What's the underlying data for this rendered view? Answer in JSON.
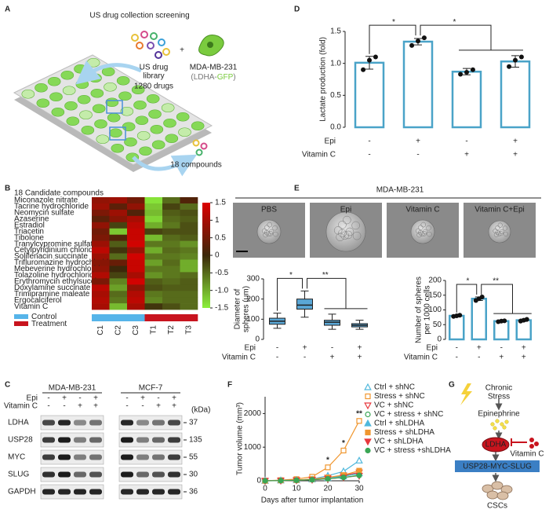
{
  "figure": {
    "panel_a": {
      "letter": "A",
      "title": "US drug collection screening",
      "library_lines": [
        "US drug",
        "library"
      ],
      "drug_count": "1280 drugs",
      "plus": "+",
      "cell_line": "MDA-MB-231",
      "reporter_parts": [
        "(LDHA-",
        "GFP",
        ")"
      ],
      "result": "18 compounds"
    },
    "panel_b": {
      "letter": "B",
      "type": "heatmap",
      "header": "18 Candidate compounds",
      "rows": [
        "Miconazole nitrate",
        "Tacrine hydrochloride",
        "Neomycin sulfate",
        "Azaserine",
        "Estradiol",
        "Triacetin",
        "Tibolone",
        "Tranylcypromine sulfate",
        "Cetylpyridinium chloride",
        "Solifenacin succinate",
        "Trifluromazine hydrochloride",
        "Mebeverine hydrochloride",
        "Tolazoline hydrochloride",
        "Erythromycin ethylsuccinate",
        "Doxylamine succinate",
        "Trimipramine maleate",
        "Ergocalciferol",
        "Vitamin C"
      ],
      "groups": [
        {
          "name": "Control",
          "color": "#56b4e9",
          "columns": [
            "C1",
            "C2",
            "C3"
          ]
        },
        {
          "name": "Treatment",
          "color": "#c8141e",
          "columns": [
            "T1",
            "T2",
            "T3"
          ]
        }
      ],
      "values": [
        [
          0.8,
          0.9,
          0.5,
          -1.4,
          -0.5,
          0.2
        ],
        [
          0.9,
          0.3,
          0.8,
          -1.2,
          -0.2,
          -0.5
        ],
        [
          0.6,
          0.9,
          0.2,
          -1.1,
          -0.4,
          -0.3
        ],
        [
          0.3,
          0.7,
          1.0,
          -1.3,
          -0.5,
          -0.4
        ],
        [
          0.8,
          -0.2,
          1.2,
          -1.0,
          -0.6,
          -0.3
        ],
        [
          0.5,
          -1.2,
          1.3,
          -0.2,
          -0.3,
          -0.3
        ],
        [
          0.6,
          0.2,
          1.3,
          -1.1,
          -0.5,
          -0.4
        ],
        [
          0.9,
          -0.4,
          1.4,
          -0.6,
          -0.6,
          -0.8
        ],
        [
          1.2,
          -0.1,
          0.9,
          -1.0,
          -0.5,
          -0.6
        ],
        [
          0.9,
          -0.5,
          1.4,
          -0.6,
          -0.6,
          -0.7
        ],
        [
          0.7,
          0.4,
          1.3,
          -0.9,
          -0.5,
          -1.0
        ],
        [
          0.8,
          0.0,
          1.3,
          -0.6,
          -0.6,
          -1.0
        ],
        [
          1.1,
          -0.2,
          1.0,
          -0.8,
          -0.6,
          -0.5
        ],
        [
          0.6,
          -0.7,
          1.4,
          -0.4,
          -0.5,
          -0.4
        ],
        [
          1.2,
          -0.9,
          0.8,
          -0.3,
          -0.4,
          -0.4
        ],
        [
          1.0,
          -0.5,
          1.1,
          -0.6,
          -0.5,
          -0.5
        ],
        [
          1.1,
          -0.6,
          1.2,
          -0.7,
          -0.5,
          -0.5
        ],
        [
          1.0,
          -1.1,
          1.0,
          -0.1,
          -0.3,
          -0.5
        ]
      ],
      "colorbar": {
        "range": [
          -1.5,
          1.5
        ],
        "ticks": [
          1.5,
          1,
          0.5,
          0,
          -0.5,
          {
            "value": -1,
            "label": "-1.0"
          },
          -1.5
        ]
      }
    },
    "panel_c": {
      "letter": "C",
      "cell_lines": [
        "MDA-MB-231",
        "MCF-7"
      ],
      "conditions": [
        {
          "name": "Epi",
          "signs": [
            "-",
            "+",
            "-",
            "+"
          ]
        },
        {
          "name": "Vitamin C",
          "signs": [
            "-",
            "-",
            "+",
            "+"
          ]
        }
      ],
      "unit": "(kDa)",
      "proteins": [
        {
          "name": "LDHA",
          "kda": 37
        },
        {
          "name": "USP28",
          "kda": 135
        },
        {
          "name": "MYC",
          "kda": 55
        },
        {
          "name": "SLUG",
          "kda": 30
        },
        {
          "name": "GAPDH",
          "kda": 36
        }
      ]
    },
    "panel_d": {
      "letter": "D",
      "chart": {
        "type": "bar",
        "y_label_lines": [
          "Lactate production (fold)"
        ],
        "ylim": [
          0,
          1.5
        ],
        "yticks": [
          {
            "value": 0,
            "label": "0.0"
          },
          0.5,
          {
            "value": 1,
            "label": "1.0"
          },
          1.5
        ],
        "values": [
          1.01,
          1.34,
          0.87,
          1.03
        ],
        "errors": [
          0.1,
          0.05,
          0.05,
          0.09
        ],
        "points": [
          [
            0.9,
            1.05,
            1.1
          ],
          [
            1.28,
            1.35,
            1.4
          ],
          [
            0.83,
            0.86,
            0.9
          ],
          [
            0.95,
            1.05,
            1.1
          ]
        ],
        "color": "#4aa3c8",
        "conditions": [
          {
            "name": "Epi",
            "signs": [
              "-",
              "+",
              "-",
              "+"
            ]
          },
          {
            "name": "Vitamin C",
            "signs": [
              "-",
              "-",
              "+",
              "+"
            ]
          }
        ],
        "significance": [
          "*",
          "*"
        ]
      }
    },
    "panel_e": {
      "letter": "E",
      "cell_line": "MDA-MB-231",
      "images": [
        "PBS",
        "Epi",
        "Vitamin C",
        "Vitamin C+Epi"
      ],
      "charts": [
        {
          "type": "box",
          "y_label_lines": [
            "Diameter of",
            "spheres (μm)"
          ],
          "ylim": [
            0,
            300
          ],
          "yticks": [
            0,
            100,
            200,
            300
          ],
          "color": "#5aa7d6",
          "boxes": [
            {
              "min": 55,
              "q1": 75,
              "median": 90,
              "q3": 105,
              "max": 130
            },
            {
              "min": 110,
              "q1": 150,
              "median": 170,
              "q3": 200,
              "max": 240
            },
            {
              "min": 50,
              "q1": 70,
              "median": 85,
              "q3": 95,
              "max": 125
            },
            {
              "min": 50,
              "q1": 62,
              "median": 70,
              "q3": 78,
              "max": 95
            }
          ],
          "conditions": [
            {
              "name": "Epi",
              "signs": [
                "-",
                "+",
                "-",
                "+"
              ]
            },
            {
              "name": "Vitamin C",
              "signs": [
                "-",
                "-",
                "+",
                "+"
              ]
            }
          ],
          "significance": [
            "*",
            "**"
          ]
        },
        {
          "type": "bar",
          "y_label_lines": [
            "Number of spheres",
            "per 1000 cells"
          ],
          "ylim": [
            0,
            200
          ],
          "yticks": [
            0,
            50,
            100,
            150,
            200
          ],
          "color": "#4aa3c8",
          "values": [
            80,
            138,
            62,
            65
          ],
          "errors": [
            3,
            6,
            2,
            4
          ],
          "points": [
            [
              78,
              80,
              82
            ],
            [
              132,
              138,
              144
            ],
            [
              60,
              62,
              63
            ],
            [
              62,
              65,
              68
            ]
          ],
          "conditions": [
            {
              "name": "Epi",
              "signs": [
                "-",
                "+",
                "-",
                "+"
              ]
            },
            {
              "name": "Vitamin C",
              "signs": [
                "-",
                "-",
                "+",
                "+"
              ]
            }
          ],
          "significance": [
            "*",
            "**"
          ]
        }
      ]
    },
    "panel_f": {
      "letter": "F",
      "chart": {
        "type": "line",
        "y_label": "Tumor volume (mm³)",
        "x_label": "Days after tumor implantation",
        "x": [
          0,
          5,
          10,
          15,
          20,
          25,
          30
        ],
        "xlim": [
          0,
          30
        ],
        "xticks": [
          0,
          10,
          20,
          30
        ],
        "ylim": [
          0,
          2500
        ],
        "yticks": [
          0,
          1000,
          2000
        ],
        "series": [
          {
            "name": "Ctrl + shNC",
            "color": "#4fb8dc",
            "marker": "triangle",
            "filled": false,
            "values": [
              0,
              10,
              20,
              50,
              150,
              280,
              600
            ]
          },
          {
            "name": "Stress + shNC",
            "color": "#f0962e",
            "marker": "square",
            "filled": false,
            "values": [
              0,
              20,
              50,
              120,
              400,
              900,
              1780
            ]
          },
          {
            "name": "VC + shNC",
            "color": "#e8383d",
            "marker": "triangle-down",
            "filled": false,
            "values": [
              0,
              10,
              20,
              40,
              90,
              160,
              250
            ]
          },
          {
            "name": "VC + stress + shNC",
            "color": "#3aa655",
            "marker": "circle",
            "filled": false,
            "values": [
              0,
              10,
              20,
              40,
              80,
              150,
              200
            ]
          },
          {
            "name": "Ctrl + shLDHA",
            "color": "#4fb8dc",
            "marker": "triangle",
            "filled": true,
            "values": [
              0,
              10,
              20,
              40,
              80,
              130,
              220
            ]
          },
          {
            "name": "Stress + shLDHA",
            "color": "#f0962e",
            "marker": "square",
            "filled": true,
            "values": [
              0,
              10,
              20,
              50,
              100,
              170,
              300
            ]
          },
          {
            "name": "VC + shLDHA",
            "color": "#e8383d",
            "marker": "triangle-down",
            "filled": true,
            "values": [
              0,
              5,
              15,
              30,
              60,
              100,
              150
            ]
          },
          {
            "name": "VC + stress +shLDHA",
            "color": "#3aa655",
            "marker": "circle",
            "filled": true,
            "values": [
              0,
              5,
              15,
              30,
              60,
              100,
              160
            ]
          }
        ],
        "annotations": [
          {
            "x": 20,
            "text": "*"
          },
          {
            "x": 25,
            "text": "*"
          },
          {
            "x": 30,
            "text": "**"
          }
        ]
      }
    },
    "panel_g": {
      "letter": "G",
      "stress_lines": [
        "Chronic",
        "Stress"
      ],
      "hormone": "Epinephrine",
      "enzyme": "LDHA",
      "inhibitor": "Vitamin C",
      "pathway": "USP28-MYC-SLUG",
      "outcome": "CSCs"
    }
  }
}
